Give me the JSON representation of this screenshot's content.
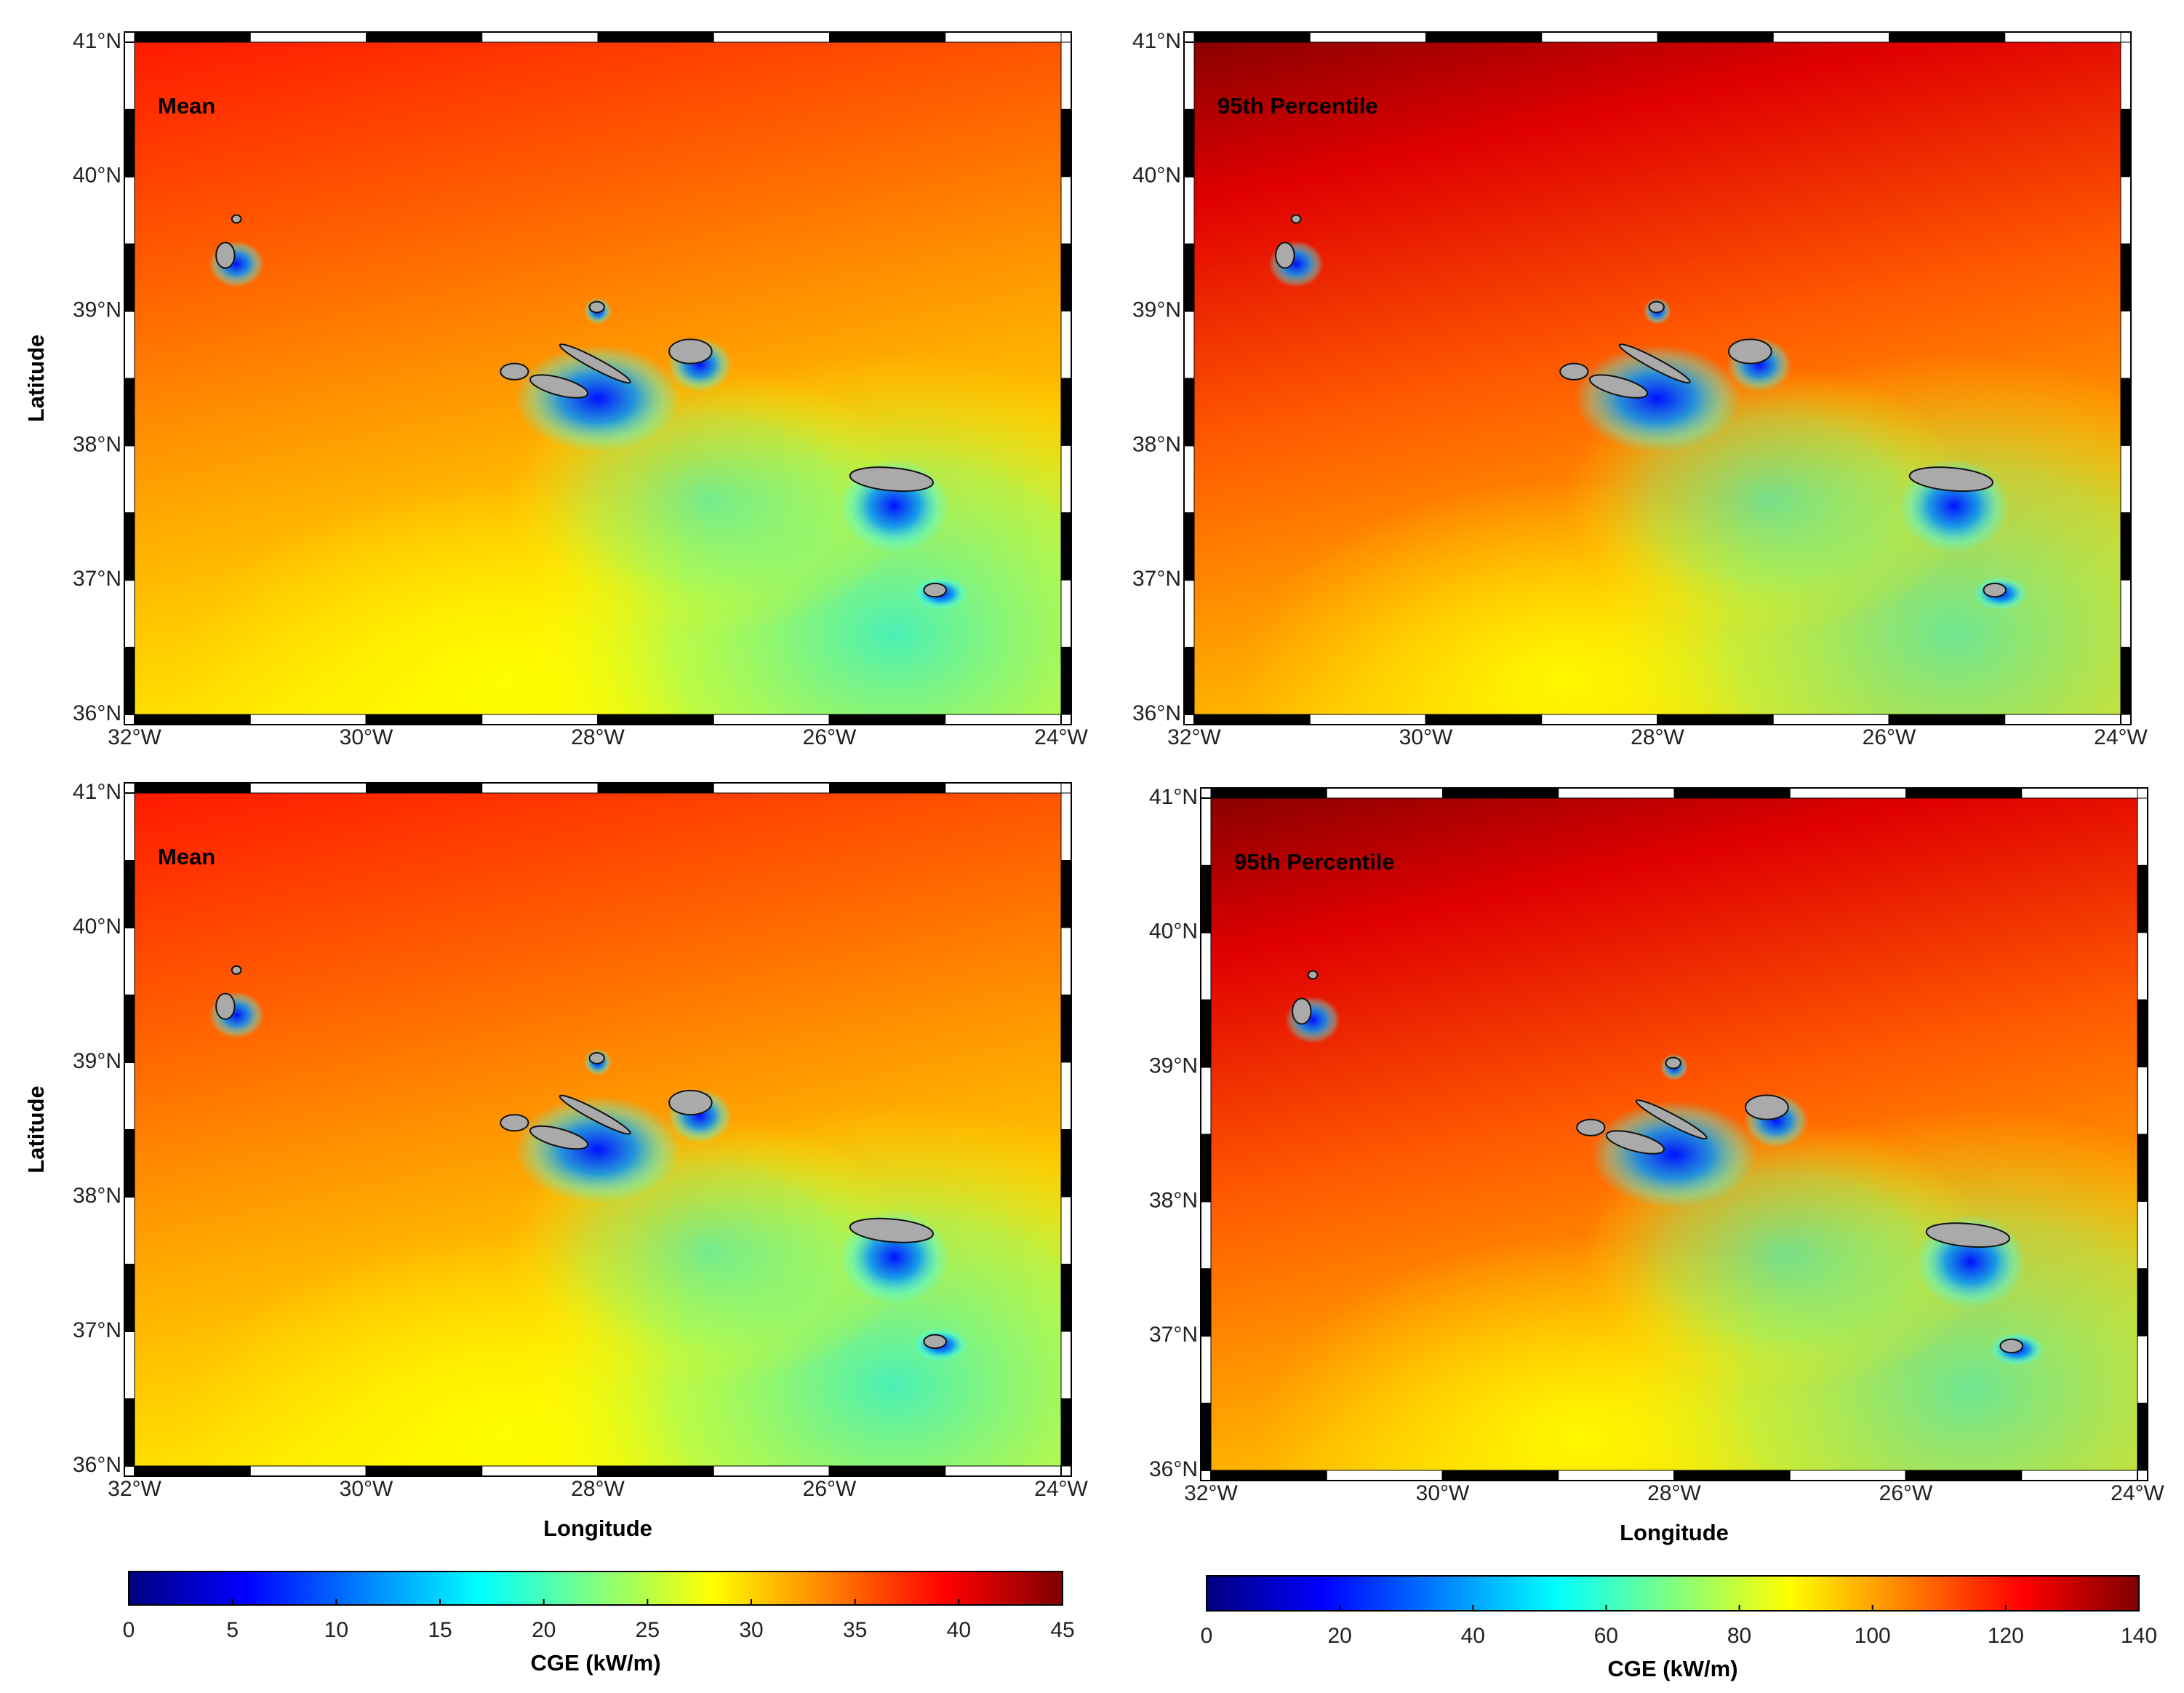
{
  "axes": {
    "xlabel": "Longitude",
    "ylabel": "Latitude",
    "xlim": [
      -32,
      -24
    ],
    "ylim": [
      36,
      41
    ],
    "xticks": [
      {
        "value": -32,
        "label": "32°W"
      },
      {
        "value": -30,
        "label": "30°W"
      },
      {
        "value": -28,
        "label": "28°W"
      },
      {
        "value": -26,
        "label": "26°W"
      },
      {
        "value": -24,
        "label": "24°W"
      }
    ],
    "yticks": [
      {
        "value": 36,
        "label": "36°N"
      },
      {
        "value": 37,
        "label": "37°N"
      },
      {
        "value": 38,
        "label": "38°N"
      },
      {
        "value": 39,
        "label": "39°N"
      },
      {
        "value": 40,
        "label": "40°N"
      },
      {
        "value": 41,
        "label": "41°N"
      }
    ]
  },
  "panels": [
    {
      "label": "Mean"
    },
    {
      "label": "95th Percentile"
    },
    {
      "label": "Mean"
    },
    {
      "label": "95th Percentile"
    }
  ],
  "colorbars": [
    {
      "label": "CGE (kW/m)",
      "lim": [
        0,
        45
      ],
      "ticks": [
        0,
        5,
        10,
        15,
        20,
        25,
        30,
        35,
        40,
        45
      ]
    },
    {
      "label": "CGE (kW/m)",
      "lim": [
        0,
        140
      ],
      "ticks": [
        0,
        20,
        40,
        60,
        80,
        100,
        120,
        140
      ]
    }
  ],
  "colormap": [
    "#00007f",
    "#0000ff",
    "#0080ff",
    "#00ffff",
    "#80ff80",
    "#ffff00",
    "#ff8000",
    "#ff0000",
    "#7f0000"
  ]
}
